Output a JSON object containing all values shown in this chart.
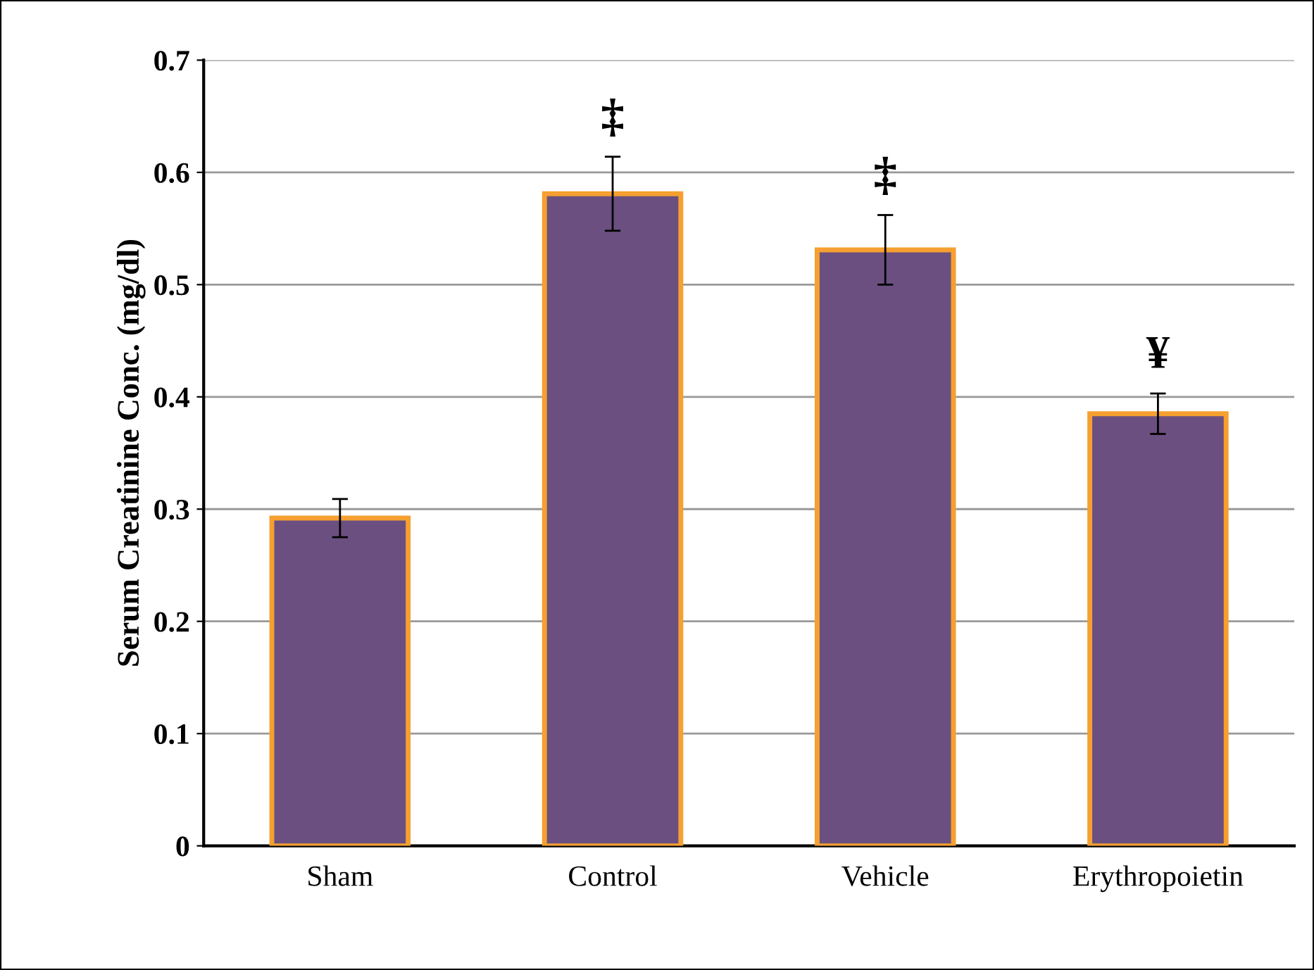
{
  "chart_data": {
    "type": "bar",
    "ylabel": "Serum Creatinine Conc. (mg/dl)",
    "categories": [
      "Sham",
      "Control",
      "Vehicle",
      "Erythropoietin"
    ],
    "values": [
      0.292,
      0.581,
      0.531,
      0.385
    ],
    "errors": [
      0.017,
      0.033,
      0.031,
      0.018
    ],
    "color": "#6b4f80",
    "ylim": [
      0,
      0.7
    ],
    "yticks": [
      {
        "value": 0,
        "label": "0"
      },
      0.1,
      0.2,
      0.3,
      0.4,
      0.5,
      0.6,
      0.7
    ],
    "grid": "y",
    "annotations": [
      "‡",
      "‡",
      "¥"
    ]
  }
}
